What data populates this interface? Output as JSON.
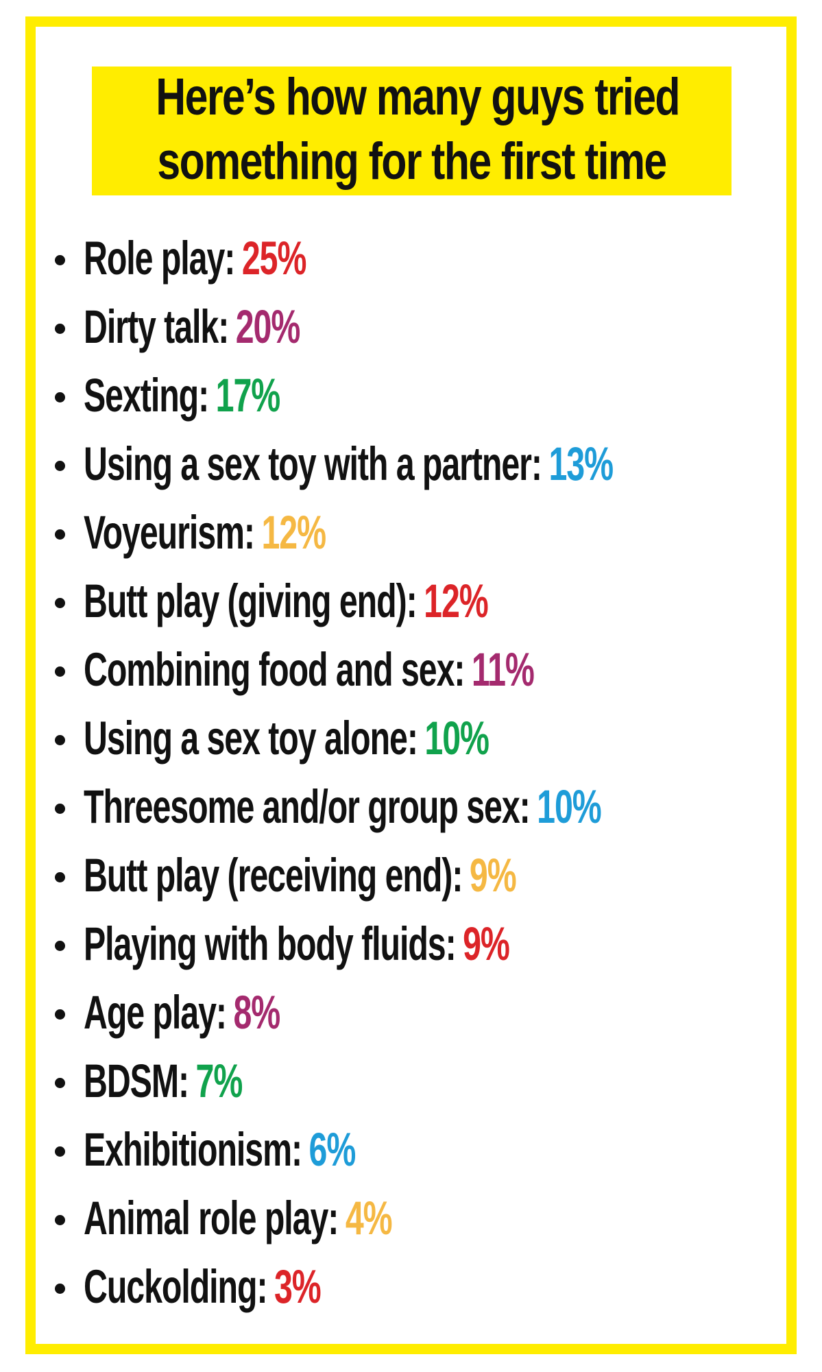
{
  "title": {
    "line1": "Here’s how many guys tried",
    "line2": "something for the first time"
  },
  "list": {
    "items": [
      {
        "label": "Role play:",
        "value": "25%",
        "color": "#DC2428"
      },
      {
        "label": "Dirty talk:",
        "value": "20%",
        "color": "#A42A6E"
      },
      {
        "label": "Sexting:",
        "value": "17%",
        "color": "#10A24C"
      },
      {
        "label": "Using a sex toy with a partner:",
        "value": "13%",
        "color": "#1E9CD8"
      },
      {
        "label": "Voyeurism:",
        "value": "12%",
        "color": "#F5B843"
      },
      {
        "label": "Butt play (giving end):",
        "value": "12%",
        "color": "#DC2428"
      },
      {
        "label": "Combining food and sex:",
        "value": "11%",
        "color": "#A42A6E"
      },
      {
        "label": "Using a sex toy alone:",
        "value": "10%",
        "color": "#10A24C"
      },
      {
        "label": "Threesome and/or group sex:",
        "value": "10%",
        "color": "#1E9CD8"
      },
      {
        "label": "Butt play (receiving end):",
        "value": "9%",
        "color": "#F5B843"
      },
      {
        "label": "Playing with body fluids:",
        "value": "9%",
        "color": "#DC2428"
      },
      {
        "label": "Age play:",
        "value": "8%",
        "color": "#A42A6E"
      },
      {
        "label": "BDSM:",
        "value": "7%",
        "color": "#10A24C"
      },
      {
        "label": "Exhibitionism:",
        "value": "6%",
        "color": "#1E9CD8"
      },
      {
        "label": "Animal role play:",
        "value": "4%",
        "color": "#F5B843"
      },
      {
        "label": "Cuckolding:",
        "value": "3%",
        "color": "#DC2428"
      }
    ]
  },
  "colors": {
    "accent_yellow": "#FFED00",
    "text_black": "#111111",
    "red": "#DC2428",
    "magenta": "#A42A6E",
    "green": "#10A24C",
    "blue": "#1E9CD8",
    "orange": "#F5B843"
  },
  "chart_data": {
    "type": "table",
    "title": "Here’s how many guys tried something for the first time",
    "categories": [
      "Role play",
      "Dirty talk",
      "Sexting",
      "Using a sex toy with a partner",
      "Voyeurism",
      "Butt play (giving end)",
      "Combining food and sex",
      "Using a sex toy alone",
      "Threesome and/or group sex",
      "Butt play (receiving end)",
      "Playing with body fluids",
      "Age play",
      "BDSM",
      "Exhibitionism",
      "Animal role play",
      "Cuckolding"
    ],
    "values": [
      25,
      20,
      17,
      13,
      12,
      12,
      11,
      10,
      10,
      9,
      9,
      8,
      7,
      6,
      4,
      3
    ],
    "unit": "%"
  }
}
